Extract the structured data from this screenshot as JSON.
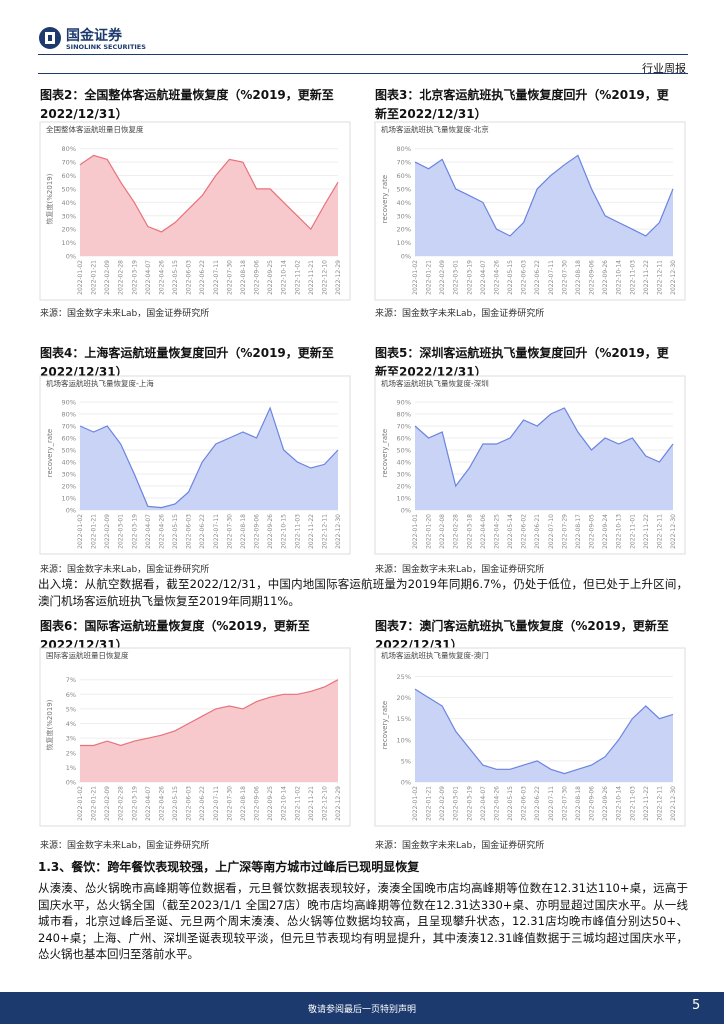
{
  "header": {
    "brand": "国金证券",
    "brand_en": "SINOLINK SECURITIES",
    "report_type": "行业周报"
  },
  "figures": [
    {
      "title": "图表2：全国整体客运航班量恢复度（%2019，更新至2022/12/31）"
    },
    {
      "title": "图表3：北京客运航班执飞量恢复度回升（%2019，更新至2022/12/31）"
    },
    {
      "title": "图表4：上海客运航班量恢复度回升（%2019，更新至2022/12/31）"
    },
    {
      "title": "图表5：深圳客运航班执飞量恢复度回升（%2019，更新至2022/12/31）"
    },
    {
      "title": "图表6：国际客运航班量恢复度（%2019，更新至2022/12/31）"
    },
    {
      "title": "图表7：澳门客运航班执飞量恢复度（%2019，更新至2022/12/31）"
    }
  ],
  "chart_data": [
    {
      "type": "area",
      "title": "全国整体客运航班量日恢复度",
      "ylabel": "恢复度(%2019)",
      "color": "#e8727a",
      "fill": "#f7c9cc",
      "source": "来源：国金数字未来Lab，国金证券研究所",
      "categories": [
        "2022-01-02",
        "2022-01-21",
        "2022-02-09",
        "2022-02-28",
        "2022-03-19",
        "2022-04-07",
        "2022-04-26",
        "2022-05-15",
        "2022-06-03",
        "2022-06-22",
        "2022-07-11",
        "2022-07-30",
        "2022-08-18",
        "2022-09-06",
        "2022-09-25",
        "2022-10-14",
        "2022-11-02",
        "2022-11-21",
        "2022-12-10",
        "2022-12-29"
      ],
      "values": [
        68,
        75,
        72,
        55,
        40,
        22,
        18,
        25,
        35,
        45,
        60,
        72,
        70,
        50,
        50,
        40,
        30,
        20,
        38,
        55
      ],
      "ylim": [
        0,
        85
      ],
      "yticks": [
        {
          "value": 0,
          "label": "0%"
        },
        {
          "value": 10,
          "label": "10%"
        },
        {
          "value": 20,
          "label": "20%"
        },
        {
          "value": 30,
          "label": "30%"
        },
        {
          "value": 40,
          "label": "40%"
        },
        {
          "value": 50,
          "label": "50%"
        },
        {
          "value": 60,
          "label": "60%"
        },
        {
          "value": 70,
          "label": "70%"
        },
        {
          "value": 80,
          "label": "80%"
        }
      ]
    },
    {
      "type": "area",
      "title": "机场客运航班执飞量恢复度-北京",
      "ylabel": "recovery_rate",
      "color": "#6b84e0",
      "fill": "#c9d3f5",
      "source": "来源：国金数字未来Lab，国金证券研究所",
      "categories": [
        "2022-01-02",
        "2022-01-21",
        "2022-02-09",
        "2022-03-01",
        "2022-03-19",
        "2022-04-07",
        "2022-04-26",
        "2022-05-15",
        "2022-06-03",
        "2022-06-22",
        "2022-07-11",
        "2022-07-30",
        "2022-08-18",
        "2022-09-06",
        "2022-09-26",
        "2022-10-14",
        "2022-11-03",
        "2022-11-22",
        "2022-12-11",
        "2022-12-30"
      ],
      "values": [
        70,
        65,
        72,
        50,
        45,
        40,
        20,
        15,
        25,
        50,
        60,
        68,
        75,
        50,
        30,
        25,
        20,
        15,
        25,
        50
      ],
      "ylim": [
        0,
        85
      ],
      "yticks": [
        {
          "value": 0,
          "label": "0%"
        },
        {
          "value": 10,
          "label": "10%"
        },
        {
          "value": 20,
          "label": "20%"
        },
        {
          "value": 30,
          "label": "30%"
        },
        {
          "value": 40,
          "label": "40%"
        },
        {
          "value": 50,
          "label": "50%"
        },
        {
          "value": 60,
          "label": "60%"
        },
        {
          "value": 70,
          "label": "70%"
        },
        {
          "value": 80,
          "label": "80%"
        }
      ]
    },
    {
      "type": "area",
      "title": "机场客运航班执飞量恢复度-上海",
      "ylabel": "recovery_rate",
      "color": "#6b84e0",
      "fill": "#c9d3f5",
      "source": "来源：国金数字未来Lab，国金证券研究所",
      "categories": [
        "2022-01-02",
        "2022-01-21",
        "2022-02-09",
        "2022-03-01",
        "2022-03-19",
        "2022-04-07",
        "2022-04-26",
        "2022-05-15",
        "2022-06-03",
        "2022-06-22",
        "2022-07-11",
        "2022-07-30",
        "2022-08-18",
        "2022-09-06",
        "2022-09-26",
        "2022-10-15",
        "2022-11-03",
        "2022-11-22",
        "2022-12-11",
        "2022-12-30"
      ],
      "values": [
        70,
        65,
        70,
        55,
        30,
        3,
        2,
        5,
        15,
        40,
        55,
        60,
        65,
        60,
        85,
        50,
        40,
        35,
        38,
        50
      ],
      "ylim": [
        0,
        95
      ],
      "yticks": [
        {
          "value": 0,
          "label": "0%"
        },
        {
          "value": 10,
          "label": "10%"
        },
        {
          "value": 20,
          "label": "20%"
        },
        {
          "value": 30,
          "label": "30%"
        },
        {
          "value": 40,
          "label": "40%"
        },
        {
          "value": 50,
          "label": "50%"
        },
        {
          "value": 60,
          "label": "60%"
        },
        {
          "value": 70,
          "label": "70%"
        },
        {
          "value": 80,
          "label": "80%"
        },
        {
          "value": 90,
          "label": "90%"
        }
      ]
    },
    {
      "type": "area",
      "title": "机场客运航班执飞量恢复度-深圳",
      "ylabel": "recovery_rate",
      "color": "#6b84e0",
      "fill": "#c9d3f5",
      "source": "来源：国金数字未来Lab，国金证券研究所",
      "categories": [
        "2022-01-01",
        "2022-01-20",
        "2022-02-08",
        "2022-02-28",
        "2022-03-18",
        "2022-04-06",
        "2022-04-25",
        "2022-05-14",
        "2022-06-02",
        "2022-06-21",
        "2022-07-10",
        "2022-07-29",
        "2022-08-17",
        "2022-09-05",
        "2022-09-24",
        "2022-10-13",
        "2022-11-01",
        "2022-11-22",
        "2022-12-11",
        "2022-12-30"
      ],
      "values": [
        70,
        60,
        65,
        20,
        35,
        55,
        55,
        60,
        75,
        70,
        80,
        85,
        65,
        50,
        60,
        55,
        60,
        45,
        40,
        55
      ],
      "ylim": [
        0,
        95
      ],
      "yticks": [
        {
          "value": 0,
          "label": "0%"
        },
        {
          "value": 10,
          "label": "10%"
        },
        {
          "value": 20,
          "label": "20%"
        },
        {
          "value": 30,
          "label": "30%"
        },
        {
          "value": 40,
          "label": "40%"
        },
        {
          "value": 50,
          "label": "50%"
        },
        {
          "value": 60,
          "label": "60%"
        },
        {
          "value": 70,
          "label": "70%"
        },
        {
          "value": 80,
          "label": "80%"
        },
        {
          "value": 90,
          "label": "90%"
        }
      ]
    },
    {
      "type": "area",
      "title": "国际客运航班量日恢复度",
      "ylabel": "恢复度(%2019)",
      "color": "#e8727a",
      "fill": "#f7c9cc",
      "source": "来源：国金数字未来Lab，国金证券研究所",
      "categories": [
        "2022-01-02",
        "2022-01-21",
        "2022-02-09",
        "2022-02-28",
        "2022-03-19",
        "2022-04-07",
        "2022-04-26",
        "2022-05-15",
        "2022-06-03",
        "2022-06-22",
        "2022-07-11",
        "2022-07-30",
        "2022-08-18",
        "2022-09-06",
        "2022-09-25",
        "2022-10-14",
        "2022-11-02",
        "2022-11-21",
        "2022-12-10",
        "2022-12-29"
      ],
      "values": [
        2.5,
        2.5,
        2.8,
        2.5,
        2.8,
        3.0,
        3.2,
        3.5,
        4.0,
        4.5,
        5.0,
        5.2,
        5.0,
        5.5,
        5.8,
        6.0,
        6.0,
        6.2,
        6.5,
        7.0
      ],
      "ylim": [
        0,
        7.8
      ],
      "yticks": [
        {
          "value": 0,
          "label": "0%"
        },
        {
          "value": 1,
          "label": "1%"
        },
        {
          "value": 2,
          "label": "2%"
        },
        {
          "value": 3,
          "label": "3%"
        },
        {
          "value": 4,
          "label": "4%"
        },
        {
          "value": 5,
          "label": "5%"
        },
        {
          "value": 6,
          "label": "6%"
        },
        {
          "value": 7,
          "label": "7%"
        }
      ]
    },
    {
      "type": "area",
      "title": "机场客运航班执飞量恢复度-澳门",
      "ylabel": "recovery_rate",
      "color": "#6b84e0",
      "fill": "#c9d3f5",
      "source": "来源：国金数字未来Lab，国金证券研究所",
      "categories": [
        "2022-01-02",
        "2022-01-21",
        "2022-02-09",
        "2022-03-01",
        "2022-03-19",
        "2022-04-07",
        "2022-04-26",
        "2022-05-15",
        "2022-06-03",
        "2022-06-22",
        "2022-07-11",
        "2022-07-30",
        "2022-08-18",
        "2022-09-06",
        "2022-09-26",
        "2022-10-14",
        "2022-11-03",
        "2022-11-22",
        "2022-12-11",
        "2022-12-30"
      ],
      "values": [
        22,
        20,
        18,
        12,
        8,
        4,
        3,
        3,
        4,
        5,
        3,
        2,
        3,
        4,
        6,
        10,
        15,
        18,
        15,
        16
      ],
      "ylim": [
        0,
        27
      ],
      "yticks": [
        {
          "value": 0,
          "label": "0%"
        },
        {
          "value": 5,
          "label": "5%"
        },
        {
          "value": 10,
          "label": "10%"
        },
        {
          "value": 15,
          "label": "15%"
        },
        {
          "value": 20,
          "label": "20%"
        },
        {
          "value": 25,
          "label": "25%"
        }
      ]
    }
  ],
  "body": {
    "paragraph_1": "出入境：从航空数据看，截至2022/12/31，中国内地国际客运航班量为2019年同期6.7%，仍处于低位，但已处于上升区间，澳门机场客运航班执飞量恢复至2019年同期11%。",
    "heading": "1.3、餐饮：跨年餐饮表现较强，上广深等南方城市过峰后已现明显恢复",
    "paragraph_2": "从湊湊、怂火锅晚市高峰期等位数据看，元旦餐饮数据表现较好，湊湊全国晚市店均高峰期等位数在12.31达110+桌，远高于国庆水平，怂火锅全国（截至2023/1/1 全国27店）晚市店均高峰期等位数在12.31达330+桌、亦明显超过国庆水平。从一线城市看，北京过峰后圣诞、元旦两个周末湊湊、怂火锅等位数据均较高，且呈现攀升状态，12.31店均晚市峰值分别达50+、240+桌；上海、广州、深圳圣诞表现较平淡，但元旦节表现均有明显提升，其中湊湊12.31峰值数据于三城均超过国庆水平，怂火锅也基本回归至落前水平。"
  },
  "footer": {
    "disclaimer": "敬请参阅最后一页特别声明",
    "page": "5"
  }
}
